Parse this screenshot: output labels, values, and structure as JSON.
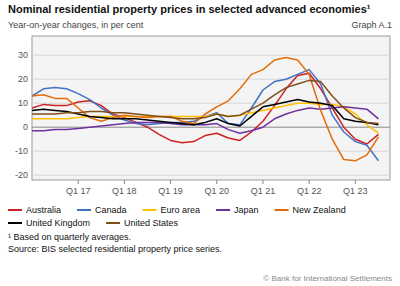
{
  "chart_data": {
    "type": "line",
    "title": "Nominal residential property prices in selected advanced economies¹",
    "subtitle": "Year-on-year changes, in per cent",
    "annotations": [
      "Graph A.1",
      "¹  Based on quarterly averages.",
      "Source: BIS selected residential property price series.",
      "© Bank for International Settlements"
    ],
    "x": [
      2016.0,
      2016.25,
      2016.5,
      2016.75,
      2017.0,
      2017.25,
      2017.5,
      2017.75,
      2018.0,
      2018.25,
      2018.5,
      2018.75,
      2019.0,
      2019.25,
      2019.5,
      2019.75,
      2020.0,
      2020.25,
      2020.5,
      2020.75,
      2021.0,
      2021.25,
      2021.5,
      2021.75,
      2022.0,
      2022.25,
      2022.5,
      2022.75,
      2023.0,
      2023.25,
      2023.5
    ],
    "xlim": [
      2016.0,
      2023.75
    ],
    "xticks": [
      {
        "value": 2017.0,
        "label": "Q1 17"
      },
      {
        "value": 2018.0,
        "label": "Q1 18"
      },
      {
        "value": 2019.0,
        "label": "Q1 19"
      },
      {
        "value": 2020.0,
        "label": "Q1 20"
      },
      {
        "value": 2021.0,
        "label": "Q1 21"
      },
      {
        "value": 2022.0,
        "label": "Q1 22"
      },
      {
        "value": 2023.0,
        "label": "Q1 23"
      }
    ],
    "ylim": [
      -22,
      38
    ],
    "yticks": [
      -20,
      -10,
      0,
      10,
      20,
      30
    ],
    "grid": true,
    "series": [
      {
        "name": "Australia",
        "color": "#cc2222",
        "values": [
          8.0,
          9.5,
          9.0,
          9.0,
          10.5,
          11.0,
          9.0,
          5.5,
          4.0,
          2.0,
          0.0,
          -3.0,
          -5.5,
          -6.5,
          -6.0,
          -3.5,
          -2.5,
          -4.5,
          -5.5,
          -2.0,
          2.5,
          9.0,
          16.0,
          21.5,
          22.5,
          16.0,
          8.0,
          0.0,
          -5.0,
          -7.0,
          -3.0
        ]
      },
      {
        "name": "Canada",
        "color": "#4472c4",
        "values": [
          13.0,
          16.0,
          16.5,
          16.0,
          14.0,
          11.5,
          8.0,
          5.0,
          3.0,
          1.5,
          1.0,
          1.5,
          2.0,
          2.0,
          2.5,
          4.5,
          6.0,
          1.5,
          1.0,
          8.0,
          15.5,
          19.0,
          20.0,
          22.0,
          24.0,
          18.0,
          5.0,
          -2.0,
          -6.0,
          -7.5,
          -14.0
        ]
      },
      {
        "name": "Euro area",
        "color": "#ffc000",
        "values": [
          3.5,
          3.5,
          3.5,
          3.5,
          4.0,
          4.5,
          4.5,
          4.5,
          4.5,
          4.5,
          4.5,
          4.5,
          4.5,
          4.5,
          4.5,
          4.5,
          5.5,
          4.5,
          5.0,
          6.0,
          7.0,
          8.0,
          9.0,
          10.0,
          10.0,
          9.5,
          9.5,
          8.5,
          5.5,
          1.0,
          -2.5
        ]
      },
      {
        "name": "Japan",
        "color": "#7030a0",
        "values": [
          -1.5,
          -1.5,
          -1.0,
          -1.0,
          -0.5,
          0.0,
          0.5,
          1.0,
          1.5,
          2.0,
          2.0,
          2.0,
          1.5,
          1.0,
          1.0,
          1.0,
          1.5,
          -1.0,
          -2.5,
          -1.5,
          0.0,
          3.5,
          5.5,
          7.0,
          8.0,
          7.5,
          8.0,
          8.5,
          8.0,
          7.5,
          3.5
        ]
      },
      {
        "name": "New Zealand",
        "color": "#e36c09",
        "values": [
          13.0,
          13.5,
          12.0,
          12.0,
          8.0,
          4.0,
          2.5,
          4.0,
          5.0,
          4.5,
          4.0,
          4.5,
          4.5,
          2.5,
          1.5,
          5.5,
          8.5,
          11.0,
          16.0,
          22.0,
          24.0,
          28.0,
          29.0,
          28.0,
          22.0,
          7.0,
          -5.0,
          -13.5,
          -14.0,
          -11.5,
          -4.0
        ]
      },
      {
        "name": "United Kingdom",
        "color": "#000000",
        "values": [
          7.0,
          7.5,
          7.0,
          6.5,
          5.5,
          4.5,
          4.0,
          3.5,
          3.5,
          3.5,
          3.0,
          2.5,
          2.0,
          1.5,
          1.0,
          2.0,
          3.5,
          1.5,
          0.5,
          4.5,
          8.5,
          9.5,
          10.5,
          11.5,
          10.5,
          10.0,
          9.0,
          3.5,
          2.5,
          2.0,
          1.0
        ]
      },
      {
        "name": "United States",
        "color": "#7f4f1a",
        "values": [
          5.5,
          5.5,
          5.5,
          6.0,
          6.0,
          6.5,
          6.5,
          6.0,
          6.0,
          5.5,
          5.0,
          4.5,
          4.0,
          3.5,
          3.5,
          4.0,
          5.5,
          4.5,
          5.0,
          7.5,
          10.0,
          13.5,
          16.5,
          18.0,
          19.5,
          19.0,
          13.0,
          8.0,
          4.0,
          2.0,
          1.5
        ]
      }
    ]
  }
}
